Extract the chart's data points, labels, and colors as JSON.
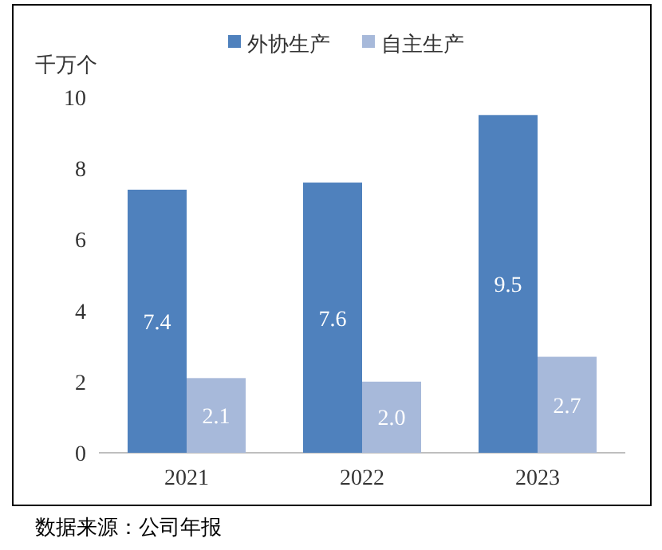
{
  "chart_data": {
    "type": "bar",
    "ylabel": "千万个",
    "categories": [
      "2021",
      "2022",
      "2023"
    ],
    "series": [
      {
        "name": "外协生产",
        "color": "#4f81bd",
        "values": [
          7.4,
          7.6,
          9.5
        ],
        "value_labels": [
          "7.4",
          "7.6",
          "9.5"
        ]
      },
      {
        "name": "自主生产",
        "color": "#a7b9da",
        "values": [
          2.1,
          2.0,
          2.7
        ],
        "value_labels": [
          "2.1",
          "2.0",
          "2.7"
        ]
      }
    ],
    "ylim": [
      0,
      10
    ],
    "yticks": [
      0,
      2,
      4,
      6,
      8,
      10
    ],
    "legend": "top",
    "annotations": [
      "数据来源：公司年报"
    ]
  }
}
